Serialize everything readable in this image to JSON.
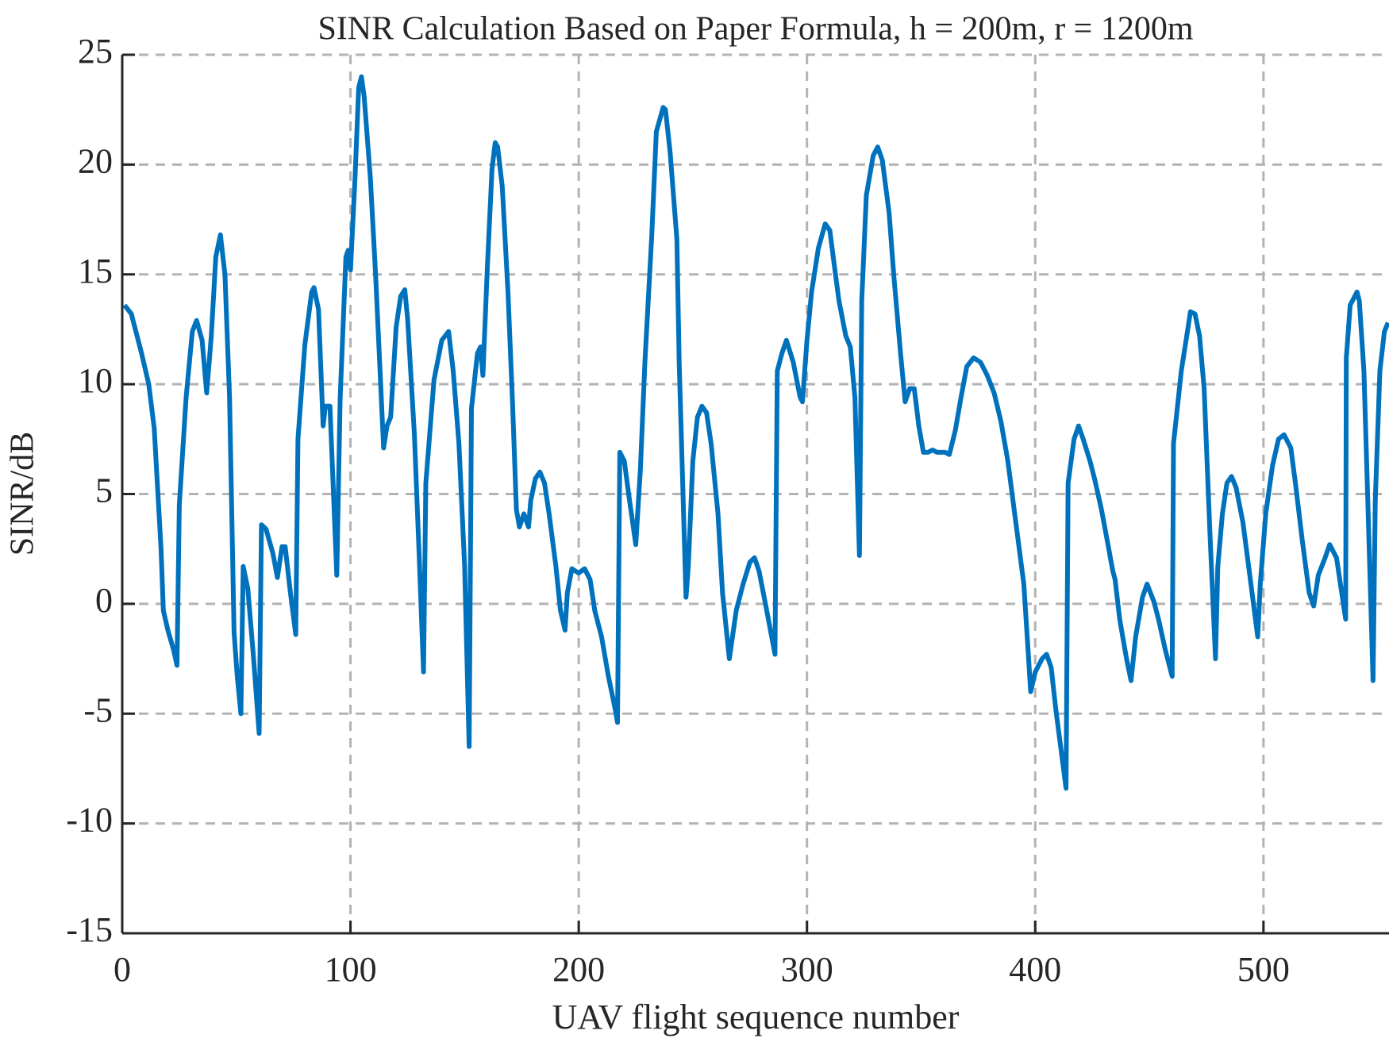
{
  "chart_data": {
    "type": "line",
    "title": "SINR Calculation Based on Paper Formula, h = 200m, r = 1200m",
    "x_label": "UAV flight sequence number",
    "y_label": "SINR/dB",
    "xlim": [
      0,
      555
    ],
    "xticks": [
      0,
      100,
      200,
      300,
      400,
      500
    ],
    "ylim": [
      -15,
      25
    ],
    "yticks": [
      -15,
      -10,
      -5,
      0,
      5,
      10,
      15,
      20,
      25
    ],
    "grid": true,
    "series": [
      {
        "color": "#0072bd",
        "x": [
          1,
          4,
          8.5,
          11.6,
          14,
          17,
          18,
          20,
          22.5,
          24,
          25,
          28,
          30.7,
          32.6,
          35,
          37,
          39,
          41,
          43,
          45,
          47,
          49,
          50.4,
          52,
          53,
          55,
          57.4,
          60,
          61,
          63,
          66,
          68,
          70,
          71.4,
          73.7,
          76,
          77,
          80,
          83,
          84,
          86,
          88,
          89,
          91,
          94,
          95.5,
          98,
          99,
          100,
          102,
          103.6,
          104.8,
          106,
          108.7,
          111,
          114.5,
          116,
          117.6,
          120,
          122,
          123.8,
          125,
          128,
          130,
          132,
          133,
          136.6,
          140,
          143,
          145,
          147.5,
          150,
          152,
          153,
          155.6,
          157,
          158,
          160,
          162,
          163.4,
          164.5,
          166.5,
          169,
          171,
          172.7,
          174,
          176,
          178,
          179,
          181,
          183,
          185,
          187,
          190,
          192,
          194,
          195,
          197,
          200,
          202.6,
          205,
          207,
          210,
          213,
          216,
          217,
          218,
          220,
          222,
          225,
          227,
          229,
          232,
          234,
          237,
          238,
          240,
          243,
          244,
          247,
          248,
          250,
          252,
          254,
          256,
          258,
          261,
          263,
          266,
          269,
          272,
          275,
          277,
          279,
          282,
          286,
          287,
          289,
          291,
          294,
          297,
          298,
          300,
          302,
          305,
          308,
          310,
          312,
          314,
          317,
          319,
          321,
          323,
          324,
          326,
          329,
          331,
          333,
          336,
          338,
          341,
          343,
          345,
          347,
          349,
          351,
          353,
          355,
          357,
          360.5,
          362.4,
          365,
          367.5,
          370,
          373,
          376,
          379,
          382,
          385,
          388,
          391,
          395,
          397,
          398,
          400,
          403,
          405,
          407,
          409,
          412,
          413.5,
          414.4,
          417,
          419,
          421,
          424,
          426,
          429,
          431.5,
          434,
          435,
          437,
          440,
          442,
          444,
          447,
          449,
          452,
          454,
          457,
          460,
          460.6,
          464,
          467,
          468,
          470,
          472,
          474,
          476.5,
          479,
          480,
          482,
          484,
          486,
          488,
          491,
          494,
          497.5,
          498.6,
          501,
          504,
          506.6,
          509,
          512,
          514,
          517,
          520,
          522,
          524,
          527,
          529,
          532,
          534,
          536,
          536.3,
          538,
          541,
          542,
          544,
          546,
          548,
          549,
          551,
          553,
          554.6
        ],
        "values": [
          13.6,
          13.2,
          11.4,
          10,
          8,
          2.5,
          -0.3,
          -1.2,
          -2.1,
          -2.8,
          4.5,
          9.4,
          12.4,
          12.9,
          12,
          9.6,
          12.2,
          15.8,
          16.8,
          15,
          9.4,
          -1.3,
          -3.3,
          -5,
          1.7,
          0.7,
          -2.3,
          -5.9,
          3.6,
          3.4,
          2.3,
          1.2,
          2.6,
          2.6,
          0.5,
          -1.4,
          7.5,
          11.8,
          14.2,
          14.4,
          13.4,
          8.1,
          9,
          9,
          1.3,
          9.4,
          15.8,
          16.1,
          15.2,
          19.4,
          23.5,
          24,
          23.1,
          19.4,
          15,
          7.1,
          8.1,
          8.5,
          12.6,
          14,
          14.3,
          13,
          7.7,
          2.5,
          -3.1,
          5.5,
          10.2,
          12,
          12.4,
          10.6,
          7.3,
          1.7,
          -6.5,
          8.9,
          11.4,
          11.7,
          10.4,
          15.4,
          19.8,
          21,
          20.8,
          19,
          14.2,
          9.2,
          4.3,
          3.5,
          4.1,
          3.5,
          4.7,
          5.7,
          6,
          5.5,
          4.1,
          1.7,
          -0.3,
          -1.2,
          0.5,
          1.6,
          1.4,
          1.6,
          1.1,
          -0.3,
          -1.5,
          -3.3,
          -4.8,
          -5.4,
          6.9,
          6.5,
          4.9,
          2.7,
          6.1,
          11,
          16.8,
          21.5,
          22.6,
          22.5,
          20.6,
          16.6,
          11,
          0.3,
          1.7,
          6.5,
          8.5,
          9,
          8.7,
          7.3,
          4.1,
          0.5,
          -2.5,
          -0.3,
          0.9,
          1.9,
          2.1,
          1.5,
          -0.1,
          -2.3,
          10.6,
          11.4,
          12,
          11,
          9.4,
          9.2,
          12,
          14.2,
          16.2,
          17.3,
          17,
          15.4,
          13.8,
          12.2,
          11.7,
          9.4,
          2.2,
          13.8,
          18.6,
          20.4,
          20.8,
          20.2,
          17.8,
          15,
          11.4,
          9.2,
          9.8,
          9.8,
          8.1,
          6.9,
          6.9,
          7,
          6.9,
          6.9,
          6.8,
          7.9,
          9.4,
          10.8,
          11.2,
          11,
          10.4,
          9.6,
          8.3,
          6.5,
          4.1,
          0.9,
          -2.3,
          -4,
          -3.1,
          -2.5,
          -2.3,
          -2.9,
          -4.8,
          -7.2,
          -8.4,
          5.5,
          7.5,
          8.1,
          7.5,
          6.5,
          5.7,
          4.3,
          2.9,
          1.5,
          1.1,
          -0.7,
          -2.5,
          -3.5,
          -1.5,
          0.3,
          0.9,
          0.1,
          -0.7,
          -2.1,
          -3.3,
          7.3,
          10.6,
          12.6,
          13.3,
          13.2,
          12.2,
          9.8,
          3.3,
          -2.5,
          1.7,
          4.1,
          5.5,
          5.8,
          5.3,
          3.7,
          1.3,
          -1.5,
          0.9,
          4.1,
          6.3,
          7.5,
          7.7,
          7.1,
          5.5,
          2.9,
          0.5,
          -0.1,
          1.3,
          2.1,
          2.7,
          2.1,
          0.7,
          -0.7,
          11.2,
          13.6,
          14.2,
          13.8,
          10.6,
          3.7,
          -3.5,
          4.7,
          10.6,
          12.4,
          12.8
        ]
      }
    ]
  }
}
